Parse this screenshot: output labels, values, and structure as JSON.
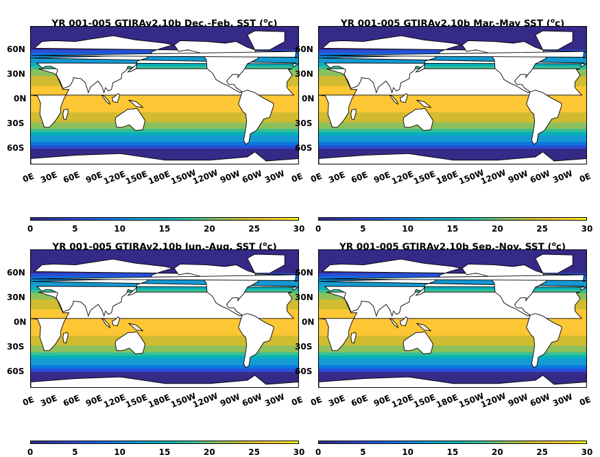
{
  "panels": [
    {
      "title_prefix": "YR 001-005 GTJRAv2.10b Dec.-Feb. SST (",
      "title_sup": "o",
      "title_suffix": "c)"
    },
    {
      "title_prefix": "YR 001-005 GTJRAv2.10b Mar.-May SST (",
      "title_sup": "o",
      "title_suffix": "c)"
    },
    {
      "title_prefix": "YR 001-005 GTJRAv2.10b Jun.-Aug. SST (",
      "title_sup": "o",
      "title_suffix": "c)"
    },
    {
      "title_prefix": "YR 001-005 GTJRAv2.10b Sep.-Nov. SST (",
      "title_sup": "o",
      "title_suffix": "c)"
    }
  ],
  "lat_labels": [
    "60N",
    "30N",
    "0N",
    "30S",
    "60S"
  ],
  "lon_labels": [
    "0E",
    "30E",
    "60E",
    "90E",
    "120E",
    "150E",
    "180E",
    "150W",
    "120W",
    "90W",
    "60W",
    "30W",
    "0E"
  ],
  "colorbar_ticks": [
    "0",
    "5",
    "10",
    "15",
    "20",
    "25",
    "30"
  ],
  "colorbar_range": [
    0,
    30
  ],
  "colormap": "parula",
  "colors": {
    "land": "#ffffff",
    "coast": "#000000",
    "cold": "#352a87",
    "warm": "#f9fb0e"
  }
}
